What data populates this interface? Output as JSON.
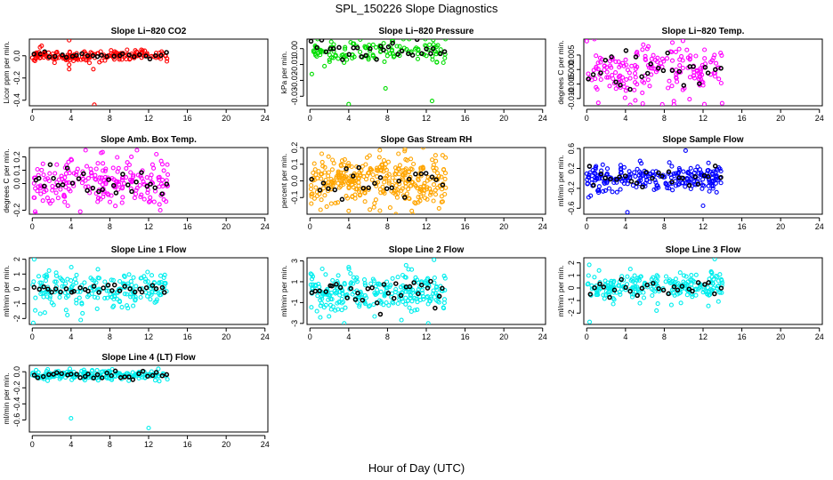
{
  "figure": {
    "title": "SPL_150226  Slope Diagnostics",
    "xlabel": "Hour of Day (UTC)"
  },
  "chart_data": [
    {
      "id": "p1",
      "type": "scatter",
      "title": "Slope Li−820 CO2",
      "ylabel": "Licor ppm per min.",
      "color": "#ff0000",
      "xlim": [
        -0.3,
        24.3
      ],
      "ylim": [
        -0.45,
        0.15
      ],
      "yticks": [
        {
          "v": -0.4,
          "l": "-0.4"
        },
        {
          "v": -0.2,
          "l": "-0.2"
        },
        {
          "v": 0.0,
          "l": "0.0"
        }
      ],
      "xticks": [
        0,
        4,
        8,
        12,
        16,
        20,
        24
      ],
      "gen": {
        "n": 170,
        "seed": 11,
        "x0": 0,
        "x1": 14,
        "center": 0.0,
        "spread": 0.025,
        "black": 26,
        "out": [
          [
            3.8,
            0.14
          ],
          [
            3.8,
            -0.08
          ],
          [
            3.8,
            -0.12
          ],
          [
            6.3,
            -0.12
          ],
          [
            6.4,
            -0.44
          ],
          [
            1.2,
            0.02
          ]
        ]
      }
    },
    {
      "id": "p2",
      "type": "scatter",
      "title": "Slope Li−820 Pressure",
      "ylabel": "kPa per min.",
      "color": "#00dd00",
      "xlim": [
        -0.3,
        24.3
      ],
      "ylim": [
        -0.036,
        0.006
      ],
      "yticks": [
        {
          "v": -0.03,
          "l": "-0.03"
        },
        {
          "v": -0.02,
          "l": "-0.02"
        },
        {
          "v": -0.01,
          "l": "-0.01"
        },
        {
          "v": 0.0,
          "l": "0.00"
        }
      ],
      "xticks": [
        0,
        4,
        8,
        12,
        16,
        20,
        24
      ],
      "gen": {
        "n": 130,
        "seed": 23,
        "x0": 0,
        "x1": 14,
        "center": -0.001,
        "spread": 0.0035,
        "black": 30,
        "out": [
          [
            4.0,
            -0.035
          ],
          [
            7.8,
            -0.025
          ],
          [
            12.6,
            -0.033
          ],
          [
            0.2,
            -0.016
          ],
          [
            1.5,
            -0.011
          ],
          [
            4.2,
            0.004
          ]
        ]
      }
    },
    {
      "id": "p3",
      "type": "scatter",
      "title": "Slope Li−820 Temp.",
      "ylabel": "degrees C per min.",
      "color": "#ff00ff",
      "xlim": [
        -0.3,
        24.3
      ],
      "ylim": [
        -0.0125,
        0.0105
      ],
      "yticks": [
        {
          "v": -0.01,
          "l": "-0.010"
        },
        {
          "v": -0.005,
          "l": "-0.005"
        },
        {
          "v": 0.0,
          "l": "0.000"
        },
        {
          "v": 0.005,
          "l": "0.005"
        }
      ],
      "xticks": [
        0,
        4,
        8,
        12,
        16,
        20,
        24
      ],
      "gen": {
        "n": 190,
        "seed": 37,
        "x0": 0,
        "x1": 14,
        "center": -0.001,
        "spread": 0.0045,
        "black": 26,
        "out": [
          [
            0.0,
            0.0098
          ],
          [
            1.2,
            -0.0115
          ],
          [
            9.0,
            -0.012
          ],
          [
            7.8,
            -0.012
          ]
        ]
      }
    },
    {
      "id": "p4",
      "type": "scatter",
      "title": "Slope Amb. Box Temp.",
      "ylabel": "degrees C per min.",
      "color": "#ff00ff",
      "xlim": [
        -0.3,
        24.3
      ],
      "ylim": [
        -0.23,
        0.27
      ],
      "yticks": [
        {
          "v": -0.2,
          "l": "-0.2"
        },
        {
          "v": 0.0,
          "l": "0.0"
        },
        {
          "v": 0.1,
          "l": "0.1"
        },
        {
          "v": 0.2,
          "l": "0.2"
        }
      ],
      "xticks": [
        0,
        4,
        8,
        12,
        16,
        20,
        24
      ],
      "gen": {
        "n": 210,
        "seed": 41,
        "x0": 0,
        "x1": 14,
        "center": 0.0,
        "spread": 0.09,
        "black": 28,
        "out": [
          [
            5.5,
            0.25
          ],
          [
            10.8,
            0.25
          ],
          [
            0.3,
            -0.21
          ],
          [
            13.2,
            -0.2
          ],
          [
            12.8,
            0.22
          ]
        ]
      }
    },
    {
      "id": "p5",
      "type": "scatter",
      "title": "Slope Gas Stream RH",
      "ylabel": "percent per min.",
      "color": "#ffa500",
      "xlim": [
        -0.3,
        24.3
      ],
      "ylim": [
        -0.2,
        0.2
      ],
      "yticks": [
        {
          "v": -0.1,
          "l": "-0.1"
        },
        {
          "v": 0.0,
          "l": "0.0"
        },
        {
          "v": 0.1,
          "l": "0.1"
        },
        {
          "v": 0.2,
          "l": "0.2"
        }
      ],
      "xticks": [
        0,
        4,
        8,
        12,
        16,
        20,
        24
      ],
      "gen": {
        "n": 340,
        "seed": 53,
        "x0": 0,
        "x1": 14,
        "center": 0.0,
        "spread": 0.075,
        "black": 24,
        "out": [
          [
            9.8,
            0.19
          ],
          [
            4.0,
            -0.18
          ],
          [
            10.5,
            -0.18
          ]
        ]
      }
    },
    {
      "id": "p6",
      "type": "scatter",
      "title": "Slope Sample Flow",
      "ylabel": "ml/min per min.",
      "color": "#0000ff",
      "xlim": [
        -0.3,
        24.3
      ],
      "ylim": [
        -0.72,
        0.62
      ],
      "yticks": [
        {
          "v": -0.6,
          "l": "-0.6"
        },
        {
          "v": -0.2,
          "l": "-0.2"
        },
        {
          "v": 0.2,
          "l": "0.2"
        },
        {
          "v": 0.6,
          "l": "0.6"
        }
      ],
      "xticks": [
        0,
        4,
        8,
        12,
        16,
        20,
        24
      ],
      "gen": {
        "n": 240,
        "seed": 67,
        "x0": 0,
        "x1": 14,
        "center": 0.0,
        "spread": 0.12,
        "black": 26,
        "out": [
          [
            4.2,
            -0.68
          ],
          [
            10.2,
            0.56
          ],
          [
            12.0,
            -0.55
          ],
          [
            0.2,
            -0.38
          ],
          [
            5.5,
            0.35
          ]
        ]
      }
    },
    {
      "id": "p7",
      "type": "scatter",
      "title": "Slope Line 1 Flow",
      "ylabel": "ml/min per min.",
      "color": "#00eeee",
      "xlim": [
        -0.3,
        24.3
      ],
      "ylim": [
        -2.4,
        2.1
      ],
      "yticks": [
        {
          "v": -2,
          "l": "-2"
        },
        {
          "v": -1,
          "l": "-1"
        },
        {
          "v": 0,
          "l": "0"
        },
        {
          "v": 1,
          "l": "1"
        },
        {
          "v": 2,
          "l": "2"
        }
      ],
      "xticks": [
        0,
        4,
        8,
        12,
        16,
        20,
        24
      ],
      "gen": {
        "n": 200,
        "seed": 71,
        "x0": 0,
        "x1": 14,
        "center": 0.0,
        "spread": 0.65,
        "black": 30,
        "blackSpread": 0.15,
        "out": [
          [
            0.2,
            2.0
          ],
          [
            0.1,
            -2.3
          ],
          [
            1.3,
            -1.6
          ],
          [
            5.0,
            -2.1
          ]
        ]
      }
    },
    {
      "id": "p8",
      "type": "scatter",
      "title": "Slope Line 2 Flow",
      "ylabel": "ml/min per min.",
      "color": "#00eeee",
      "xlim": [
        -0.3,
        24.3
      ],
      "ylim": [
        -3.1,
        3.3
      ],
      "yticks": [
        {
          "v": -3,
          "l": "-3"
        },
        {
          "v": -1,
          "l": "-1"
        },
        {
          "v": 1,
          "l": "1"
        },
        {
          "v": 3,
          "l": "3"
        }
      ],
      "xticks": [
        0,
        4,
        8,
        12,
        16,
        20,
        24
      ],
      "gen": {
        "n": 260,
        "seed": 83,
        "x0": 0,
        "x1": 14,
        "center": 0.0,
        "spread": 0.9,
        "black": 32,
        "out": [
          [
            12.8,
            3.1
          ],
          [
            12.2,
            -3.0
          ],
          [
            0.3,
            1.5
          ],
          [
            4.0,
            2.4
          ]
        ]
      }
    },
    {
      "id": "p9",
      "type": "scatter",
      "title": "Slope Line 3 Flow",
      "ylabel": "ml/min per min.",
      "color": "#00eeee",
      "xlim": [
        -0.3,
        24.3
      ],
      "ylim": [
        -2.9,
        2.4
      ],
      "yticks": [
        {
          "v": -2,
          "l": "-2"
        },
        {
          "v": -1,
          "l": "-1"
        },
        {
          "v": 0,
          "l": "0"
        },
        {
          "v": 1,
          "l": "1"
        },
        {
          "v": 2,
          "l": "2"
        }
      ],
      "xticks": [
        0,
        4,
        8,
        12,
        16,
        20,
        24
      ],
      "gen": {
        "n": 230,
        "seed": 97,
        "x0": 0,
        "x1": 14,
        "center": 0.0,
        "spread": 0.6,
        "black": 26,
        "out": [
          [
            0.3,
            -2.7
          ],
          [
            13.2,
            2.3
          ],
          [
            4.5,
            1.5
          ],
          [
            7.2,
            -1.8
          ]
        ]
      }
    },
    {
      "id": "p10",
      "type": "scatter",
      "title": "Slope Line 4 (LT) Flow",
      "ylabel": "ml/min per min.",
      "color": "#00eeee",
      "xlim": [
        -0.3,
        24.3
      ],
      "ylim": [
        -0.75,
        0.08
      ],
      "yticks": [
        {
          "v": -0.6,
          "l": "-0.6"
        },
        {
          "v": -0.4,
          "l": "-0.4"
        },
        {
          "v": -0.2,
          "l": "-0.2"
        },
        {
          "v": 0.0,
          "l": "0.0"
        }
      ],
      "xticks": [
        0,
        4,
        8,
        12,
        16,
        20,
        24
      ],
      "gen": {
        "n": 190,
        "seed": 101,
        "x0": 0,
        "x1": 14,
        "center": -0.04,
        "spread": 0.03,
        "black": 30,
        "out": [
          [
            4.0,
            -0.58
          ],
          [
            12.0,
            -0.7
          ],
          [
            0.4,
            0.02
          ],
          [
            8.2,
            -0.1
          ]
        ]
      }
    }
  ]
}
